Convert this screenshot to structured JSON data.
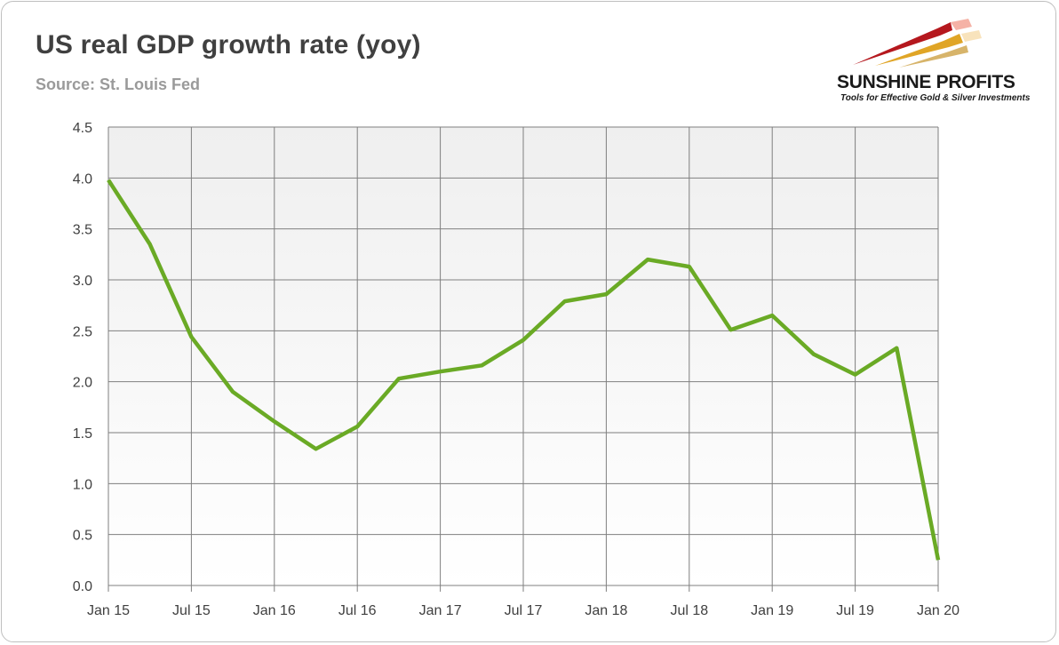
{
  "header": {
    "title": "US real GDP growth rate (yoy)",
    "source": "Source: St. Louis Fed"
  },
  "logo": {
    "name": "SUNSHINE PROFITS",
    "tagline": "Tools for Effective Gold & Silver Investments"
  },
  "chart_data": {
    "type": "line",
    "title": "US real GDP growth rate (yoy)",
    "xlabel": "",
    "ylabel": "",
    "x": [
      "Jan 15",
      "Apr 15",
      "Jul 15",
      "Oct 15",
      "Jan 16",
      "Apr 16",
      "Jul 16",
      "Oct 16",
      "Jan 17",
      "Apr 17",
      "Jul 17",
      "Oct 17",
      "Jan 18",
      "Apr 18",
      "Jul 18",
      "Oct 18",
      "Jan 19",
      "Apr 19",
      "Jul 19",
      "Oct 19",
      "Jan 20"
    ],
    "series": [
      {
        "name": "",
        "color": "#6aaa25",
        "values": [
          3.98,
          3.35,
          2.44,
          1.9,
          1.61,
          1.34,
          1.56,
          2.03,
          2.1,
          2.16,
          2.41,
          2.79,
          2.86,
          3.2,
          3.13,
          2.51,
          2.65,
          2.27,
          2.07,
          2.33,
          0.25
        ]
      }
    ],
    "xticks": [
      "Jan 15",
      "Jul 15",
      "Jan 16",
      "Jul 16",
      "Jan 17",
      "Jul 17",
      "Jan 18",
      "Jul 18",
      "Jan 19",
      "Jul 19",
      "Jan 20"
    ],
    "yticks": [
      "0.0",
      "0.5",
      "1.0",
      "1.5",
      "2.0",
      "2.5",
      "3.0",
      "3.5",
      "4.0",
      "4.5"
    ],
    "ylim": [
      0,
      4.5
    ],
    "grid": true,
    "legend": "none",
    "colors": {
      "line": "#6aaa25",
      "plot_bg_top": "#f0f0f0",
      "plot_bg_bottom": "#ffffff",
      "grid": "#7f7f7f"
    }
  }
}
